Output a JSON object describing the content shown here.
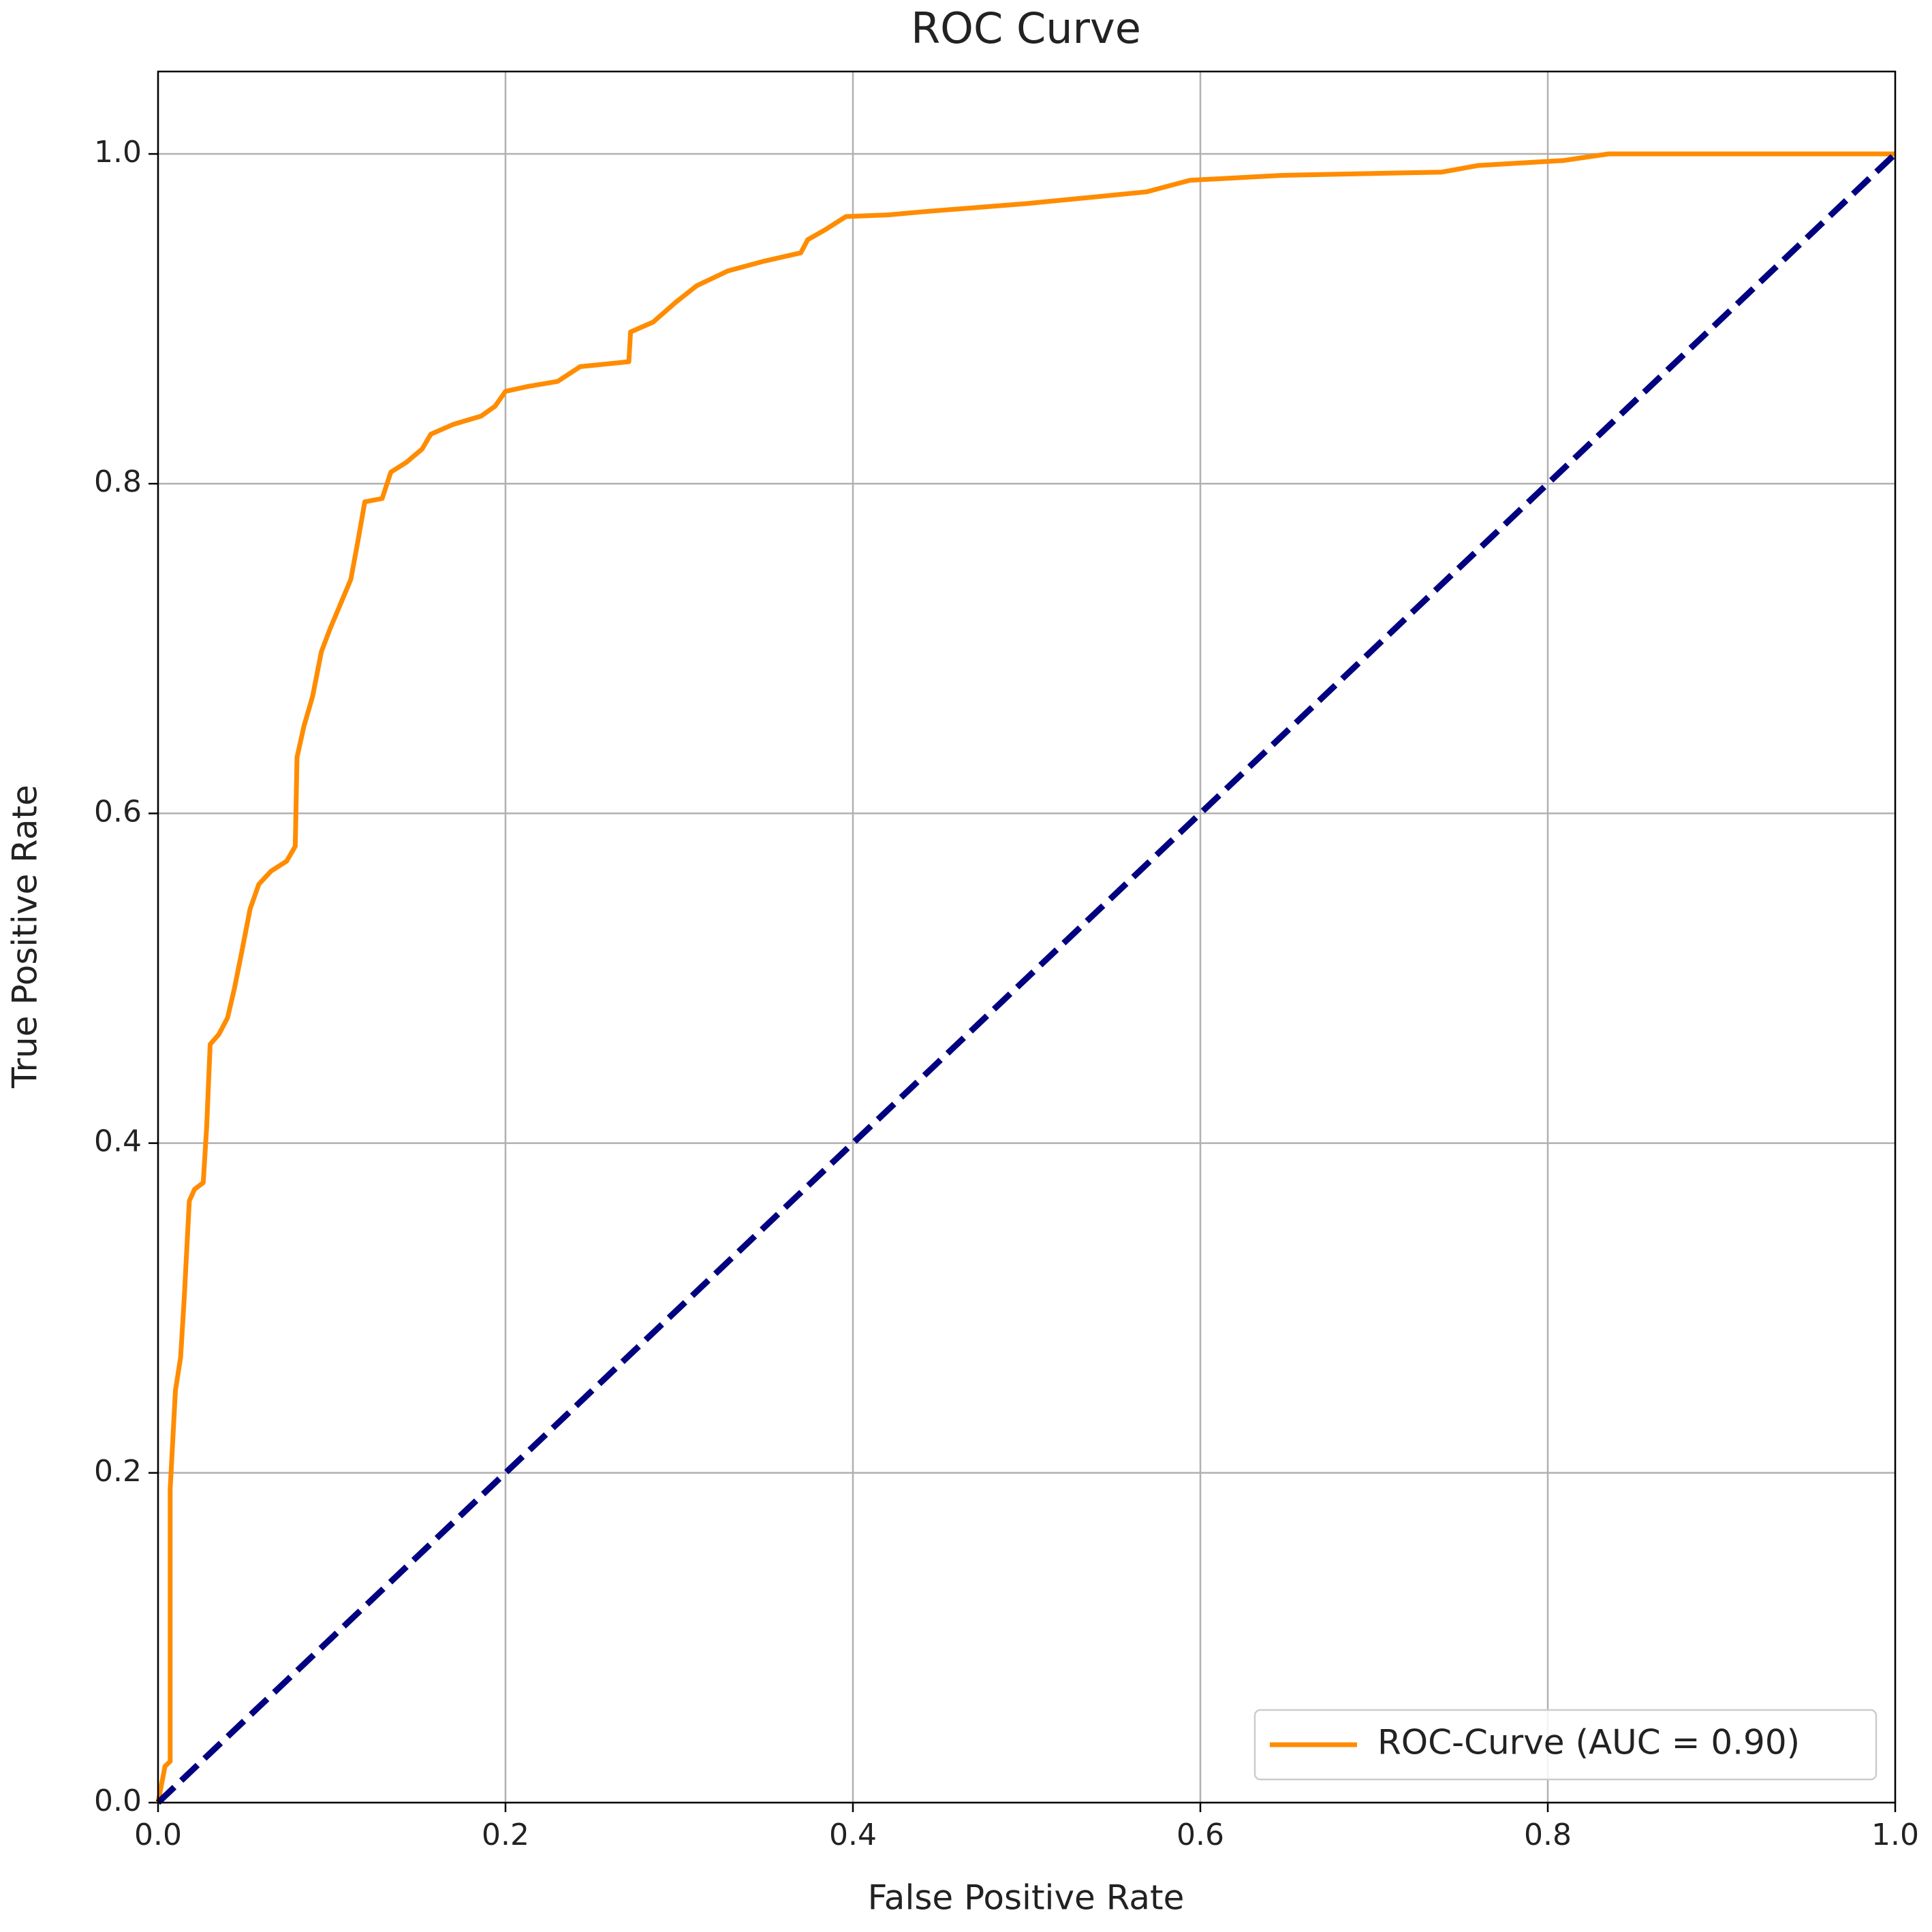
{
  "chart_data": {
    "type": "line",
    "title": "ROC Curve",
    "xlabel": "False Positive Rate",
    "ylabel": "True Positive Rate",
    "series": [
      {
        "name": "ROC-Curve (AUC = 0.90)",
        "color": "#ff8c00",
        "x": [
          0,
          0.004,
          0.007,
          0.007,
          0.01,
          0.013,
          0.015,
          0.018,
          0.021,
          0.026,
          0.028,
          0.03,
          0.035,
          0.04,
          0.044,
          0.048,
          0.053,
          0.058,
          0.065,
          0.074,
          0.079,
          0.08,
          0.084,
          0.089,
          0.094,
          0.099,
          0.105,
          0.111,
          0.115,
          0.119,
          0.129,
          0.134,
          0.143,
          0.152,
          0.157,
          0.17,
          0.186,
          0.194,
          0.2,
          0.213,
          0.23,
          0.243,
          0.271,
          0.272,
          0.285,
          0.298,
          0.31,
          0.328,
          0.349,
          0.37,
          0.374,
          0.384,
          0.396,
          0.42,
          0.441,
          0.501,
          0.54,
          0.569,
          0.594,
          0.647,
          0.739,
          0.76,
          0.809,
          0.835,
          1
        ],
        "values": [
          0,
          0.022,
          0.025,
          0.19,
          0.25,
          0.27,
          0.305,
          0.365,
          0.372,
          0.376,
          0.41,
          0.46,
          0.466,
          0.476,
          0.494,
          0.515,
          0.542,
          0.557,
          0.565,
          0.571,
          0.58,
          0.634,
          0.653,
          0.671,
          0.698,
          0.712,
          0.727,
          0.742,
          0.765,
          0.789,
          0.791,
          0.807,
          0.813,
          0.821,
          0.83,
          0.836,
          0.841,
          0.847,
          0.856,
          0.859,
          0.862,
          0.871,
          0.874,
          0.892,
          0.898,
          0.91,
          0.92,
          0.929,
          0.935,
          0.94,
          0.948,
          0.954,
          0.962,
          0.963,
          0.965,
          0.97,
          0.974,
          0.977,
          0.984,
          0.987,
          0.989,
          0.993,
          0.996,
          1.0,
          1.0
        ]
      },
      {
        "color": "#000080",
        "dashed": true,
        "x": [
          0,
          1
        ],
        "values": [
          0,
          1
        ]
      }
    ],
    "xlim": [
      0,
      1
    ],
    "ylim": [
      0,
      1.05
    ],
    "xticks": [
      {
        "value": 0,
        "label": "0.0"
      },
      0.2,
      0.4,
      0.6,
      0.8,
      {
        "value": 1,
        "label": "1.0"
      }
    ],
    "yticks": [
      {
        "value": 0,
        "label": "0.0"
      },
      0.2,
      0.4,
      0.6,
      0.8,
      {
        "value": 1,
        "label": "1.0"
      }
    ],
    "grid": true,
    "legend": "lower right"
  }
}
